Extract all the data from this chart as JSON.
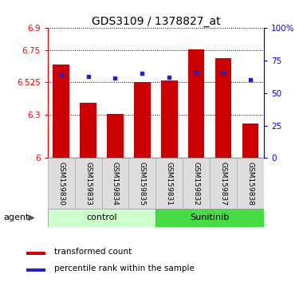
{
  "title": "GDS3109 / 1378827_at",
  "samples": [
    "GSM159830",
    "GSM159833",
    "GSM159834",
    "GSM159835",
    "GSM159831",
    "GSM159832",
    "GSM159837",
    "GSM159838"
  ],
  "red_values": [
    6.65,
    6.38,
    6.305,
    6.525,
    6.535,
    6.755,
    6.69,
    6.24
  ],
  "blue_values": [
    6.575,
    6.565,
    6.553,
    6.585,
    6.558,
    6.59,
    6.59,
    6.545
  ],
  "y_min": 6.0,
  "y_max": 6.9,
  "y_ticks_left": [
    6.0,
    6.3,
    6.525,
    6.75,
    6.9
  ],
  "y_ticks_left_labels": [
    "6",
    "6.3",
    "6.525",
    "6.75",
    "6.9"
  ],
  "y_ticks_right": [
    0,
    25,
    50,
    75,
    100
  ],
  "y_ticks_right_labels": [
    "0",
    "25",
    "50",
    "75",
    "100%"
  ],
  "bar_color": "#cc0000",
  "dot_color": "#2222cc",
  "bar_width": 0.6,
  "control_bg": "#ccffcc",
  "sunitinib_bg": "#44dd44",
  "legend_items": [
    "transformed count",
    "percentile rank within the sample"
  ],
  "legend_colors": [
    "#cc0000",
    "#2222cc"
  ]
}
